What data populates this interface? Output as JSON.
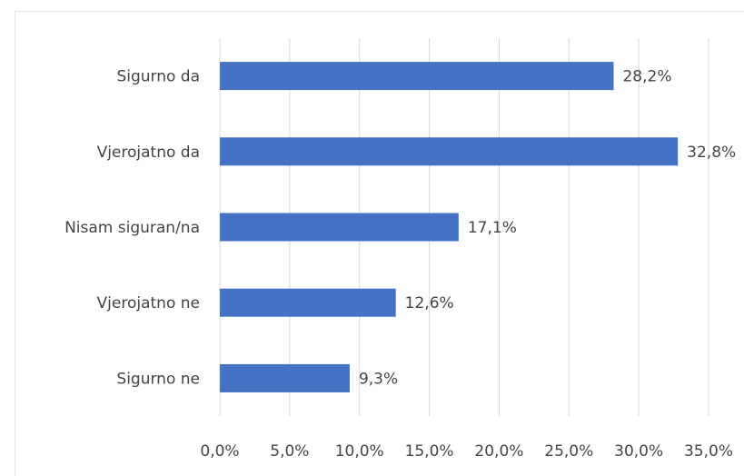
{
  "chart_data": {
    "type": "bar",
    "orientation": "horizontal",
    "categories": [
      "Sigurno da",
      "Vjerojatno da",
      "Nisam siguran/na",
      "Vjerojatno ne",
      "Sigurno ne"
    ],
    "values": [
      28.2,
      32.8,
      17.1,
      12.6,
      9.3
    ],
    "data_labels": [
      "28,2%",
      "32,8%",
      "17,1%",
      "12,6%",
      "9,3%"
    ],
    "x_ticks": [
      0,
      5,
      10,
      15,
      20,
      25,
      30,
      35
    ],
    "x_tick_labels": [
      "0,0%",
      "5,0%",
      "10,0%",
      "15,0%",
      "20,0%",
      "25,0%",
      "30,0%",
      "35,0%"
    ],
    "xlim": [
      0,
      35
    ],
    "grid": "vertical",
    "bar_color": "#4472C4",
    "grid_color": "#d9d9d9",
    "legend": "none"
  }
}
